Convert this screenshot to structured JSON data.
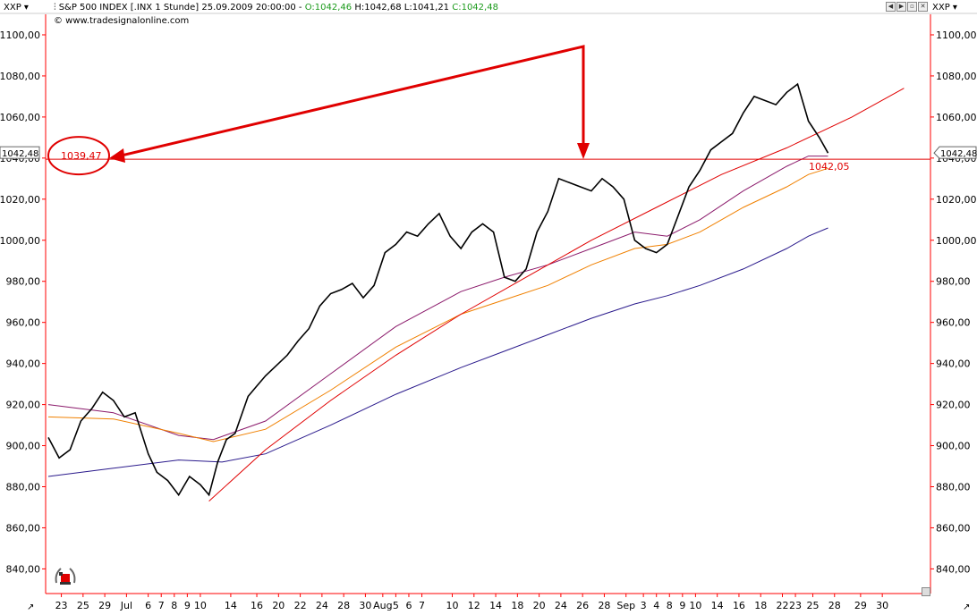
{
  "toolbar": {
    "left_symbol": "XXP",
    "right_symbol": "XXP",
    "title": "S&P 500 INDEX [.INX  1 Stunde] 25.09.2009 20:00:00 -",
    "open": "O:1042,46",
    "hl": "H:1042,68 L:1041,21",
    "close": "C:1042,48",
    "watermark": "© www.tradesignalonline.com",
    "window_buttons": [
      "◀",
      "▶",
      "▫",
      "✕"
    ]
  },
  "price_badges": {
    "last_left": "1042,48",
    "last_right": "1042,48",
    "circled": "1039,47",
    "line_value": "1042,05"
  },
  "colors": {
    "bg": "#ffffff",
    "axis": "#ff0000",
    "candles": "#000000",
    "ma_purple": "#8b1a6b",
    "ma_orange": "#f08000",
    "ma_navy": "#2a1a8c",
    "trendline": "#e00000",
    "annotation": "#e00000"
  },
  "chart_data": {
    "type": "line",
    "title": "S&P 500 INDEX [.INX  1 Stunde] 25.09.2009 20:00:00",
    "ylim": [
      828,
      1110
    ],
    "y_ticks": [
      "840,00",
      "860,00",
      "880,00",
      "900,00",
      "920,00",
      "940,00",
      "960,00",
      "980,00",
      "1000,00",
      "1020,00",
      "1040,00",
      "1060,00",
      "1080,00",
      "1100,00"
    ],
    "y_tick_values": [
      840,
      860,
      880,
      900,
      920,
      940,
      960,
      980,
      1000,
      1020,
      1040,
      1060,
      1080,
      1100
    ],
    "x_ticks": [
      "23",
      "25",
      "29",
      "Jul",
      "6",
      "7",
      "8",
      "9",
      "10",
      "14",
      "16",
      "20",
      "22",
      "24",
      "28",
      "30",
      "Aug",
      "5",
      "6",
      "7",
      "10",
      "12",
      "14",
      "18",
      "20",
      "24",
      "26",
      "28",
      "Sep",
      "3",
      "4",
      "8",
      "9",
      "10",
      "14",
      "16",
      "18",
      "22",
      "23",
      "25",
      "28",
      "29",
      "30"
    ],
    "x_tick_index": [
      0.6,
      1.6,
      2.6,
      3.6,
      4.6,
      5.2,
      5.8,
      6.4,
      7.0,
      8.4,
      9.6,
      10.6,
      11.6,
      12.6,
      13.6,
      14.6,
      15.4,
      16.0,
      16.6,
      17.2,
      18.6,
      19.6,
      20.6,
      21.6,
      22.6,
      23.6,
      24.6,
      25.6,
      26.6,
      27.4,
      28.0,
      28.6,
      29.2,
      29.8,
      30.8,
      31.8,
      32.8,
      33.8,
      34.4,
      35.2,
      36.2,
      37.4,
      38.4
    ],
    "price_path": [
      [
        0,
        904
      ],
      [
        0.5,
        894
      ],
      [
        1,
        898
      ],
      [
        1.5,
        912
      ],
      [
        2,
        918
      ],
      [
        2.5,
        926
      ],
      [
        3,
        922
      ],
      [
        3.5,
        914
      ],
      [
        4,
        916
      ],
      [
        4.6,
        896
      ],
      [
        5,
        887
      ],
      [
        5.5,
        883
      ],
      [
        6,
        876
      ],
      [
        6.5,
        885
      ],
      [
        7,
        881
      ],
      [
        7.4,
        876
      ],
      [
        7.8,
        892
      ],
      [
        8.2,
        903
      ],
      [
        8.6,
        906
      ],
      [
        8.8,
        912
      ],
      [
        9.2,
        924
      ],
      [
        9.6,
        929
      ],
      [
        10,
        934
      ],
      [
        10.5,
        939
      ],
      [
        11,
        944
      ],
      [
        11.5,
        951
      ],
      [
        12,
        957
      ],
      [
        12.5,
        968
      ],
      [
        13,
        974
      ],
      [
        13.5,
        976
      ],
      [
        14,
        979
      ],
      [
        14.5,
        972
      ],
      [
        15,
        978
      ],
      [
        15.5,
        994
      ],
      [
        16,
        998
      ],
      [
        16.5,
        1004
      ],
      [
        17,
        1002
      ],
      [
        17.5,
        1008
      ],
      [
        18,
        1013
      ],
      [
        18.5,
        1002
      ],
      [
        19,
        996
      ],
      [
        19.5,
        1004
      ],
      [
        20,
        1008
      ],
      [
        20.5,
        1004
      ],
      [
        21,
        982
      ],
      [
        21.5,
        980
      ],
      [
        22,
        986
      ],
      [
        22.5,
        1004
      ],
      [
        23,
        1014
      ],
      [
        23.5,
        1030
      ],
      [
        24,
        1028
      ],
      [
        24.5,
        1026
      ],
      [
        25,
        1024
      ],
      [
        25.5,
        1030
      ],
      [
        26,
        1026
      ],
      [
        26.5,
        1020
      ],
      [
        27,
        1000
      ],
      [
        27.5,
        996
      ],
      [
        28,
        994
      ],
      [
        28.5,
        998
      ],
      [
        29,
        1012
      ],
      [
        29.5,
        1026
      ],
      [
        30,
        1034
      ],
      [
        30.5,
        1044
      ],
      [
        31,
        1048
      ],
      [
        31.5,
        1052
      ],
      [
        32,
        1062
      ],
      [
        32.5,
        1070
      ],
      [
        33,
        1068
      ],
      [
        33.5,
        1066
      ],
      [
        34,
        1072
      ],
      [
        34.5,
        1076
      ],
      [
        35,
        1058
      ],
      [
        35.5,
        1050
      ],
      [
        35.9,
        1042.48
      ]
    ],
    "series": [
      {
        "name": "",
        "color": "#8b1a6b",
        "points": [
          [
            0,
            920
          ],
          [
            3,
            916
          ],
          [
            6,
            905
          ],
          [
            7.6,
            903
          ],
          [
            10,
            912
          ],
          [
            13,
            935
          ],
          [
            16,
            958
          ],
          [
            19,
            975
          ],
          [
            21,
            982
          ],
          [
            23,
            988
          ],
          [
            25,
            996
          ],
          [
            27,
            1004
          ],
          [
            28.5,
            1002
          ],
          [
            30,
            1010
          ],
          [
            32,
            1024
          ],
          [
            34,
            1036
          ],
          [
            35,
            1041
          ],
          [
            35.9,
            1041
          ]
        ]
      },
      {
        "name": "",
        "color": "#f08000",
        "points": [
          [
            0,
            914
          ],
          [
            3,
            913
          ],
          [
            6,
            906
          ],
          [
            7.6,
            902
          ],
          [
            10,
            908
          ],
          [
            13,
            927
          ],
          [
            16,
            948
          ],
          [
            19,
            964
          ],
          [
            21,
            971
          ],
          [
            23,
            978
          ],
          [
            25,
            988
          ],
          [
            27,
            996
          ],
          [
            28.5,
            998
          ],
          [
            30,
            1004
          ],
          [
            32,
            1016
          ],
          [
            34,
            1026
          ],
          [
            35,
            1032
          ],
          [
            35.9,
            1035
          ]
        ]
      },
      {
        "name": "",
        "color": "#2a1a8c",
        "points": [
          [
            0,
            885
          ],
          [
            3,
            889
          ],
          [
            6,
            893
          ],
          [
            8,
            892
          ],
          [
            10,
            896
          ],
          [
            13,
            910
          ],
          [
            16,
            925
          ],
          [
            19,
            938
          ],
          [
            21,
            946
          ],
          [
            23,
            954
          ],
          [
            25,
            962
          ],
          [
            27,
            969
          ],
          [
            28.5,
            973
          ],
          [
            30,
            978
          ],
          [
            32,
            986
          ],
          [
            34,
            996
          ],
          [
            35,
            1002
          ],
          [
            35.9,
            1006
          ]
        ]
      },
      {
        "name": "",
        "color": "#e00000",
        "points": [
          [
            7.4,
            873
          ],
          [
            10,
            898
          ],
          [
            13,
            922
          ],
          [
            16,
            944
          ],
          [
            19,
            964
          ],
          [
            22,
            982
          ],
          [
            25,
            1000
          ],
          [
            28,
            1016
          ],
          [
            31,
            1032
          ],
          [
            34,
            1045
          ],
          [
            37,
            1060
          ],
          [
            39.4,
            1074
          ]
        ]
      }
    ],
    "horizontal_line": 1039.47
  }
}
